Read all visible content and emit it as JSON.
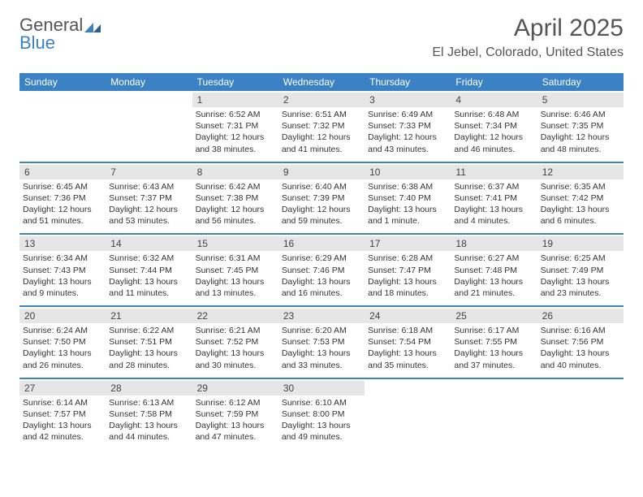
{
  "brand": {
    "top": "General",
    "bottom": "Blue"
  },
  "logo_color": "#3a82c4",
  "header": {
    "title": "April 2025",
    "location": "El Jebel, Colorado, United States"
  },
  "accent_color": "#3a82c4",
  "daynum_bg": "#e6e6e6",
  "day_labels": [
    "Sunday",
    "Monday",
    "Tuesday",
    "Wednesday",
    "Thursday",
    "Friday",
    "Saturday"
  ],
  "weeks": [
    [
      null,
      null,
      {
        "n": "1",
        "sunrise": "6:52 AM",
        "sunset": "7:31 PM",
        "daylight": "12 hours and 38 minutes."
      },
      {
        "n": "2",
        "sunrise": "6:51 AM",
        "sunset": "7:32 PM",
        "daylight": "12 hours and 41 minutes."
      },
      {
        "n": "3",
        "sunrise": "6:49 AM",
        "sunset": "7:33 PM",
        "daylight": "12 hours and 43 minutes."
      },
      {
        "n": "4",
        "sunrise": "6:48 AM",
        "sunset": "7:34 PM",
        "daylight": "12 hours and 46 minutes."
      },
      {
        "n": "5",
        "sunrise": "6:46 AM",
        "sunset": "7:35 PM",
        "daylight": "12 hours and 48 minutes."
      }
    ],
    [
      {
        "n": "6",
        "sunrise": "6:45 AM",
        "sunset": "7:36 PM",
        "daylight": "12 hours and 51 minutes."
      },
      {
        "n": "7",
        "sunrise": "6:43 AM",
        "sunset": "7:37 PM",
        "daylight": "12 hours and 53 minutes."
      },
      {
        "n": "8",
        "sunrise": "6:42 AM",
        "sunset": "7:38 PM",
        "daylight": "12 hours and 56 minutes."
      },
      {
        "n": "9",
        "sunrise": "6:40 AM",
        "sunset": "7:39 PM",
        "daylight": "12 hours and 59 minutes."
      },
      {
        "n": "10",
        "sunrise": "6:38 AM",
        "sunset": "7:40 PM",
        "daylight": "13 hours and 1 minute."
      },
      {
        "n": "11",
        "sunrise": "6:37 AM",
        "sunset": "7:41 PM",
        "daylight": "13 hours and 4 minutes."
      },
      {
        "n": "12",
        "sunrise": "6:35 AM",
        "sunset": "7:42 PM",
        "daylight": "13 hours and 6 minutes."
      }
    ],
    [
      {
        "n": "13",
        "sunrise": "6:34 AM",
        "sunset": "7:43 PM",
        "daylight": "13 hours and 9 minutes."
      },
      {
        "n": "14",
        "sunrise": "6:32 AM",
        "sunset": "7:44 PM",
        "daylight": "13 hours and 11 minutes."
      },
      {
        "n": "15",
        "sunrise": "6:31 AM",
        "sunset": "7:45 PM",
        "daylight": "13 hours and 13 minutes."
      },
      {
        "n": "16",
        "sunrise": "6:29 AM",
        "sunset": "7:46 PM",
        "daylight": "13 hours and 16 minutes."
      },
      {
        "n": "17",
        "sunrise": "6:28 AM",
        "sunset": "7:47 PM",
        "daylight": "13 hours and 18 minutes."
      },
      {
        "n": "18",
        "sunrise": "6:27 AM",
        "sunset": "7:48 PM",
        "daylight": "13 hours and 21 minutes."
      },
      {
        "n": "19",
        "sunrise": "6:25 AM",
        "sunset": "7:49 PM",
        "daylight": "13 hours and 23 minutes."
      }
    ],
    [
      {
        "n": "20",
        "sunrise": "6:24 AM",
        "sunset": "7:50 PM",
        "daylight": "13 hours and 26 minutes."
      },
      {
        "n": "21",
        "sunrise": "6:22 AM",
        "sunset": "7:51 PM",
        "daylight": "13 hours and 28 minutes."
      },
      {
        "n": "22",
        "sunrise": "6:21 AM",
        "sunset": "7:52 PM",
        "daylight": "13 hours and 30 minutes."
      },
      {
        "n": "23",
        "sunrise": "6:20 AM",
        "sunset": "7:53 PM",
        "daylight": "13 hours and 33 minutes."
      },
      {
        "n": "24",
        "sunrise": "6:18 AM",
        "sunset": "7:54 PM",
        "daylight": "13 hours and 35 minutes."
      },
      {
        "n": "25",
        "sunrise": "6:17 AM",
        "sunset": "7:55 PM",
        "daylight": "13 hours and 37 minutes."
      },
      {
        "n": "26",
        "sunrise": "6:16 AM",
        "sunset": "7:56 PM",
        "daylight": "13 hours and 40 minutes."
      }
    ],
    [
      {
        "n": "27",
        "sunrise": "6:14 AM",
        "sunset": "7:57 PM",
        "daylight": "13 hours and 42 minutes."
      },
      {
        "n": "28",
        "sunrise": "6:13 AM",
        "sunset": "7:58 PM",
        "daylight": "13 hours and 44 minutes."
      },
      {
        "n": "29",
        "sunrise": "6:12 AM",
        "sunset": "7:59 PM",
        "daylight": "13 hours and 47 minutes."
      },
      {
        "n": "30",
        "sunrise": "6:10 AM",
        "sunset": "8:00 PM",
        "daylight": "13 hours and 49 minutes."
      },
      null,
      null,
      null
    ]
  ],
  "labels": {
    "sunrise": "Sunrise:",
    "sunset": "Sunset:",
    "daylight": "Daylight:"
  }
}
